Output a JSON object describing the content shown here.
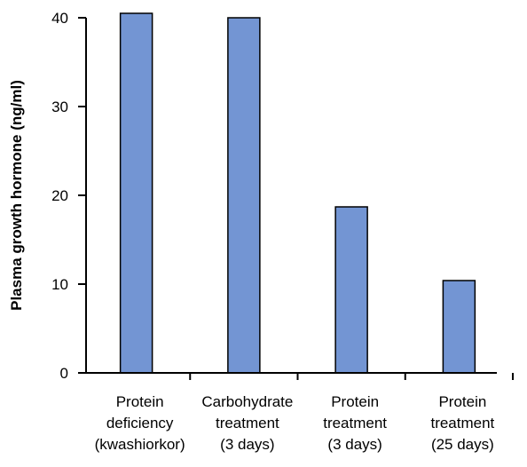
{
  "chart_data": {
    "type": "bar",
    "title": "",
    "xlabel": "",
    "ylabel": "Plasma growth hormone (ng/ml)",
    "ylim": [
      0,
      40
    ],
    "yticks": [
      "0",
      "10",
      "20",
      "30",
      "40"
    ],
    "grid": false,
    "categories": [
      {
        "lines": [
          "Protein",
          "deficiency",
          "(kwashiorkor)"
        ]
      },
      {
        "lines": [
          "Carbohydrate",
          "treatment",
          "(3 days)"
        ]
      },
      {
        "lines": [
          "Protein",
          "treatment",
          "(3 days)"
        ]
      },
      {
        "lines": [
          "Protein",
          "treatment",
          "(25 days)"
        ]
      }
    ],
    "values": [
      40.5,
      40,
      18.7,
      10.4
    ],
    "colors": {
      "bar": "#7395d3",
      "bar_stroke": "#000000",
      "axis": "#000000"
    }
  }
}
